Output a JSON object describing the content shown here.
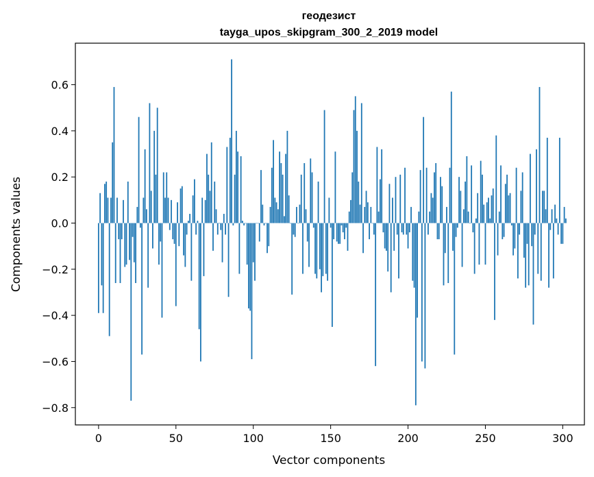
{
  "chart_data": {
    "type": "bar",
    "title": "геодезист",
    "subtitle": "tayga_upos_skipgram_300_2_2019 model",
    "xlabel": "Vector components",
    "ylabel": "Components values",
    "xlim": [
      -15,
      314
    ],
    "ylim": [
      -0.875,
      0.78
    ],
    "xticks": [
      0,
      50,
      100,
      150,
      200,
      250,
      300
    ],
    "xtick_labels": [
      "0",
      "50",
      "100",
      "150",
      "200",
      "250",
      "300"
    ],
    "yticks": [
      -0.8,
      -0.6,
      -0.4,
      -0.2,
      0.0,
      0.2,
      0.4,
      0.6
    ],
    "ytick_labels": [
      "−0.8",
      "−0.6",
      "−0.4",
      "−0.2",
      "0.0",
      "0.2",
      "0.4",
      "0.6"
    ],
    "bar_color": "#1f77b4",
    "grid": false,
    "values": [
      -0.39,
      0.13,
      -0.27,
      -0.39,
      0.17,
      0.18,
      0.11,
      -0.49,
      0.11,
      0.35,
      0.59,
      -0.26,
      0.11,
      -0.07,
      -0.26,
      -0.07,
      0.1,
      -0.19,
      -0.18,
      0.18,
      -0.16,
      -0.77,
      -0.06,
      -0.17,
      -0.26,
      0.07,
      0.46,
      -0.02,
      -0.57,
      0.11,
      0.32,
      0.06,
      -0.28,
      0.52,
      0.14,
      -0.11,
      0.4,
      0.21,
      0.5,
      -0.18,
      -0.08,
      -0.41,
      0.22,
      0.11,
      0.22,
      0.11,
      -0.03,
      0.1,
      -0.07,
      -0.09,
      -0.36,
      0.09,
      -0.1,
      0.15,
      0.16,
      -0.14,
      -0.19,
      -0.05,
      0.01,
      0.04,
      -0.25,
      0.12,
      0.19,
      -0.05,
      0.01,
      -0.46,
      -0.6,
      0.11,
      -0.23,
      0.1,
      0.3,
      0.21,
      0.14,
      0.35,
      -0.12,
      0.18,
      0.06,
      -0.05,
      0.0,
      -0.03,
      -0.17,
      0.04,
      -0.05,
      0.33,
      -0.32,
      0.37,
      0.71,
      -0.01,
      0.21,
      0.4,
      0.31,
      -0.22,
      0.29,
      0.01,
      -0.01,
      0.0,
      -0.18,
      -0.37,
      -0.38,
      -0.59,
      -0.17,
      -0.25,
      0.0,
      0.0,
      -0.08,
      0.23,
      0.08,
      -0.01,
      0.0,
      -0.13,
      -0.1,
      0.07,
      0.24,
      0.36,
      0.11,
      0.09,
      0.06,
      0.31,
      0.26,
      0.21,
      0.03,
      0.3,
      0.4,
      0.12,
      0.0,
      -0.31,
      -0.05,
      -0.06,
      0.07,
      0.0,
      0.08,
      0.21,
      -0.22,
      0.26,
      0.06,
      -0.08,
      -0.19,
      0.28,
      0.22,
      -0.02,
      -0.22,
      -0.24,
      0.18,
      -0.2,
      -0.3,
      -0.23,
      0.49,
      -0.22,
      -0.25,
      0.11,
      -0.02,
      -0.45,
      -0.07,
      0.31,
      -0.08,
      -0.09,
      -0.09,
      -0.01,
      -0.04,
      -0.07,
      -0.02,
      -0.12,
      0.05,
      0.1,
      0.22,
      0.49,
      0.55,
      0.4,
      0.18,
      0.08,
      0.52,
      -0.13,
      0.07,
      0.14,
      0.09,
      -0.07,
      0.07,
      0.0,
      -0.05,
      -0.62,
      0.33,
      0.05,
      0.19,
      0.32,
      -0.04,
      -0.11,
      -0.12,
      -0.21,
      0.17,
      -0.3,
      0.11,
      -0.12,
      0.2,
      -0.05,
      -0.24,
      0.21,
      -0.04,
      -0.05,
      0.24,
      -0.05,
      -0.11,
      -0.04,
      0.07,
      -0.25,
      -0.28,
      -0.79,
      -0.41,
      0.05,
      0.23,
      -0.6,
      0.46,
      -0.63,
      0.24,
      -0.05,
      0.05,
      0.13,
      0.11,
      0.22,
      0.26,
      -0.07,
      -0.07,
      0.2,
      0.16,
      -0.27,
      -0.13,
      0.07,
      -0.26,
      0.24,
      0.57,
      -0.12,
      -0.57,
      -0.06,
      -0.02,
      0.2,
      0.14,
      -0.19,
      0.06,
      0.18,
      0.29,
      0.05,
      0.0,
      0.25,
      -0.04,
      -0.22,
      0.02,
      0.13,
      -0.18,
      0.27,
      0.21,
      0.08,
      -0.18,
      0.09,
      0.11,
      0.02,
      0.12,
      0.15,
      -0.42,
      0.38,
      -0.14,
      0.05,
      0.25,
      -0.07,
      -0.06,
      0.17,
      0.21,
      0.12,
      0.13,
      -0.01,
      -0.14,
      -0.11,
      0.24,
      -0.24,
      -0.05,
      0.14,
      0.22,
      -0.15,
      -0.28,
      -0.09,
      -0.27,
      0.3,
      -0.1,
      -0.44,
      -0.05,
      0.32,
      -0.22,
      0.59,
      -0.25,
      0.14,
      0.14,
      0.06,
      0.37,
      -0.28,
      -0.03,
      0.06,
      -0.24,
      0.08,
      0.02,
      -0.05,
      0.37,
      -0.09,
      -0.09,
      0.07,
      0.02
    ]
  }
}
